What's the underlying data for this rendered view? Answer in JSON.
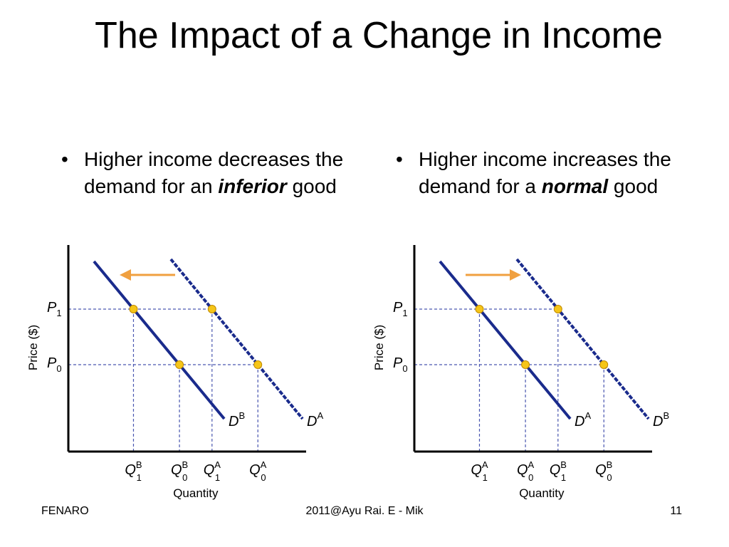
{
  "slide": {
    "title": "The Impact of a Change in Income",
    "bullet_left": {
      "text": "Higher income decreases the demand for an ",
      "emph": "inferior",
      "tail": " good"
    },
    "bullet_right": {
      "text": "Higher income increases the demand for a ",
      "emph": "normal",
      "tail": " good"
    },
    "footer": {
      "left": "FENARO",
      "center": "2011@Ayu Rai. E - Mik",
      "right": "11"
    }
  },
  "graphs": {
    "y_axis_label": "Price ($)",
    "x_axis_label": "Quantity",
    "price_labels": [
      {
        "base": "P",
        "sub": "1"
      },
      {
        "base": "P",
        "sub": "0"
      }
    ],
    "left": {
      "solid_curve": {
        "base": "D",
        "sup": "B"
      },
      "dashed_curve": {
        "base": "D",
        "sup": "A"
      },
      "quantity_labels": [
        {
          "base": "Q",
          "sub": "1",
          "sup": "B"
        },
        {
          "base": "Q",
          "sub": "0",
          "sup": "B"
        },
        {
          "base": "Q",
          "sub": "1",
          "sup": "A"
        },
        {
          "base": "Q",
          "sub": "0",
          "sup": "A"
        }
      ],
      "shift": "left"
    },
    "right": {
      "solid_curve": {
        "base": "D",
        "sup": "A"
      },
      "dashed_curve": {
        "base": "D",
        "sup": "B"
      },
      "quantity_labels": [
        {
          "base": "Q",
          "sub": "1",
          "sup": "A"
        },
        {
          "base": "Q",
          "sub": "0",
          "sup": "A"
        },
        {
          "base": "Q",
          "sub": "1",
          "sup": "B"
        },
        {
          "base": "Q",
          "sub": "0",
          "sup": "B"
        }
      ],
      "shift": "right"
    },
    "colors": {
      "curve": "#1a2b8c",
      "arrow": "#f0a040",
      "dot": "#f5c518",
      "guide_blue": "#4a57b0",
      "guide_black": "#333333"
    }
  }
}
